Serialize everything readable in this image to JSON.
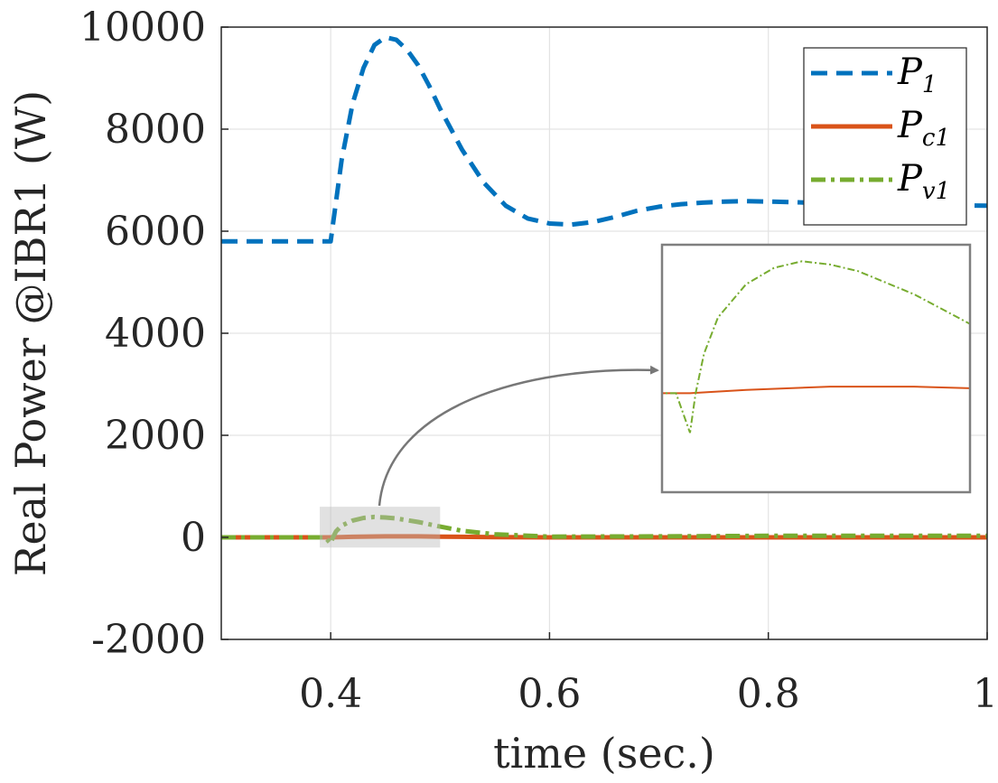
{
  "chart_data": {
    "type": "line",
    "xlabel": "time (sec.)",
    "ylabel": "Real Power @IBR1 (W)",
    "xlim": [
      0.3,
      1.0
    ],
    "ylim": [
      -2000,
      10000
    ],
    "xticks": [
      0.4,
      0.6,
      0.8,
      1.0
    ],
    "xtick_labels": [
      "0.4",
      "0.6",
      "0.8",
      "1"
    ],
    "yticks": [
      -2000,
      0,
      2000,
      4000,
      6000,
      8000,
      10000
    ],
    "ytick_labels": [
      "-2000",
      "0",
      "2000",
      "4000",
      "6000",
      "8000",
      "10000"
    ],
    "grid": true,
    "legend_position": "top-right",
    "series": [
      {
        "name": "P1",
        "name_main": "P",
        "name_sub": "1",
        "color": "#0072BD",
        "style": "dashed",
        "x": [
          0.3,
          0.4,
          0.405,
          0.41,
          0.42,
          0.43,
          0.44,
          0.45,
          0.46,
          0.47,
          0.48,
          0.49,
          0.5,
          0.52,
          0.54,
          0.56,
          0.58,
          0.6,
          0.62,
          0.64,
          0.66,
          0.68,
          0.7,
          0.72,
          0.74,
          0.76,
          0.78,
          0.8,
          0.82,
          0.85,
          0.9,
          0.95,
          1.0
        ],
        "y": [
          5800,
          5800,
          6600,
          7400,
          8500,
          9200,
          9650,
          9800,
          9750,
          9550,
          9250,
          8850,
          8400,
          7600,
          6950,
          6500,
          6250,
          6150,
          6130,
          6180,
          6280,
          6400,
          6480,
          6530,
          6560,
          6580,
          6590,
          6580,
          6570,
          6550,
          6520,
          6510,
          6500
        ]
      },
      {
        "name": "Pc1",
        "name_main": "P",
        "name_sub": "c1",
        "color": "#D95319",
        "style": "solid",
        "x": [
          0.3,
          0.4,
          0.42,
          0.45,
          0.48,
          0.5,
          0.55,
          0.6,
          0.7,
          0.8,
          0.9,
          1.0
        ],
        "y": [
          0,
          0,
          10,
          20,
          20,
          15,
          5,
          0,
          0,
          0,
          0,
          0
        ]
      },
      {
        "name": "Pv1",
        "name_main": "P",
        "name_sub": "v1",
        "color": "#77AC30",
        "style": "dashdot",
        "x": [
          0.3,
          0.395,
          0.4,
          0.402,
          0.405,
          0.41,
          0.42,
          0.43,
          0.44,
          0.45,
          0.46,
          0.48,
          0.5,
          0.52,
          0.55,
          0.6,
          0.7,
          0.8,
          0.9,
          1.0
        ],
        "y": [
          0,
          0,
          -120,
          0,
          120,
          230,
          330,
          380,
          400,
          390,
          370,
          300,
          210,
          130,
          60,
          15,
          20,
          30,
          30,
          30
        ]
      }
    ],
    "annotations": [
      {
        "type": "inset",
        "zoom_xlim": [
          0.39,
          0.5
        ],
        "zoom_ylim": [
          -200,
          600
        ],
        "inset_ylim": [
          -300,
          450
        ],
        "arrow": true
      }
    ]
  }
}
